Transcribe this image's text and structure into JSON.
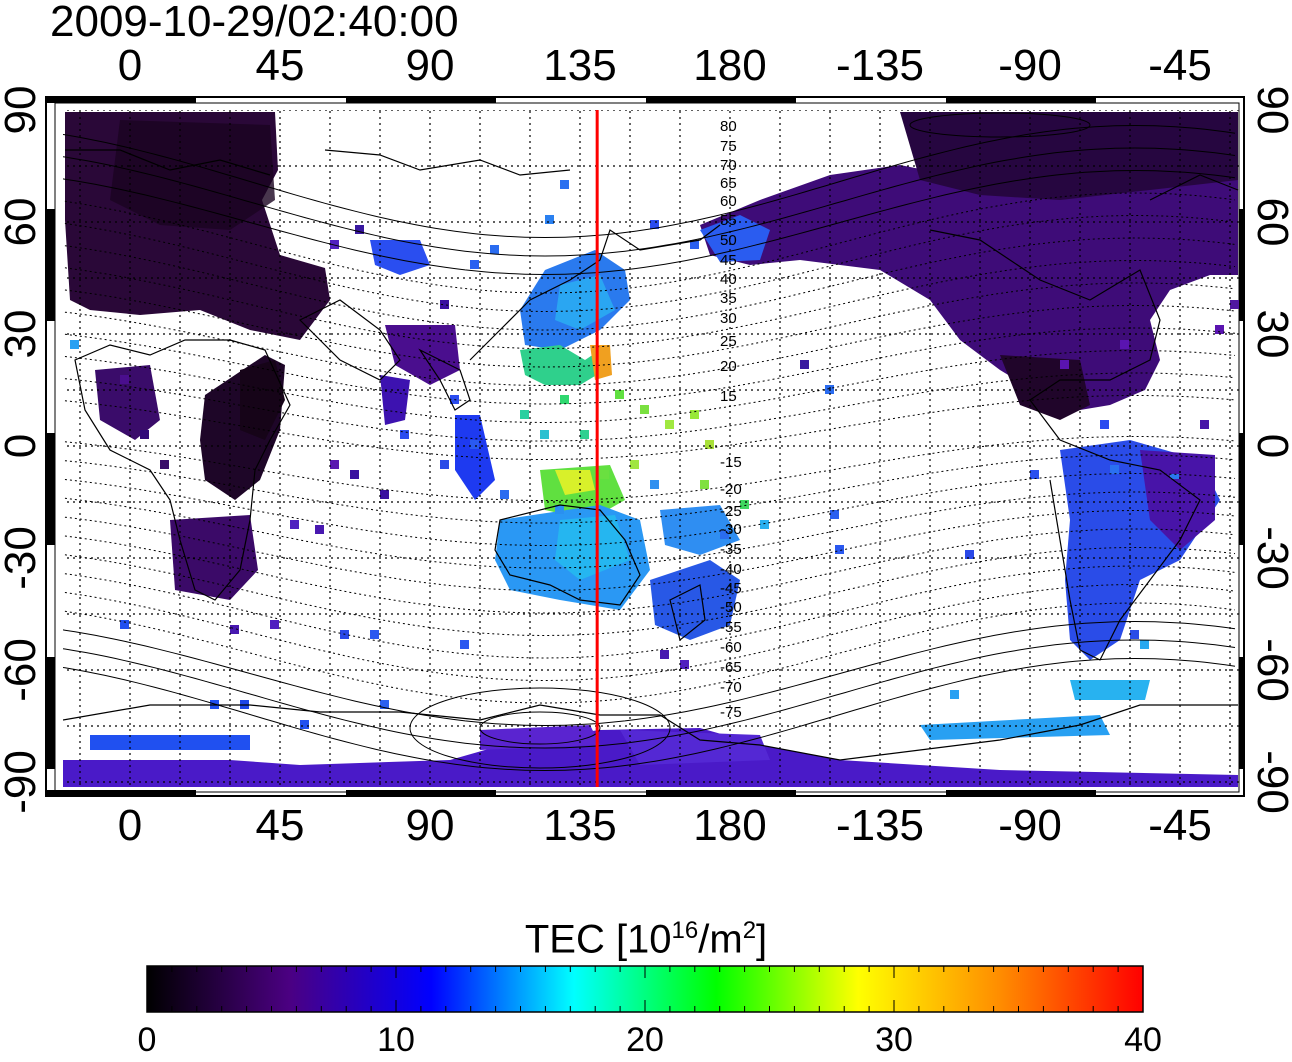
{
  "timestamp": "2009-10-29/02:40:00",
  "map": {
    "top_lon_ticks": [
      "0",
      "45",
      "90",
      "135",
      "180",
      "-135",
      "-90",
      "-45"
    ],
    "bottom_lon_ticks": [
      "0",
      "45",
      "90",
      "135",
      "180",
      "-135",
      "-90",
      "-45"
    ],
    "left_lat_ticks": [
      "90",
      "60",
      "30",
      "0",
      "-30",
      "-60",
      "-90"
    ],
    "right_lat_ticks": [
      "90",
      "60",
      "30",
      "0",
      "-30",
      "-60",
      "-90"
    ],
    "contour_labels": [
      "80",
      "75",
      "70",
      "65",
      "60",
      "55",
      "50",
      "45",
      "40",
      "35",
      "30",
      "25",
      "20",
      "15",
      "-15",
      "-20",
      "-25",
      "-30",
      "-35",
      "-40",
      "-45",
      "-50",
      "-55",
      "-60",
      "-65",
      "-70",
      "-75"
    ],
    "meridian_marker_lon": 140,
    "marker_color": "#ff0000"
  },
  "colorbar": {
    "title_prefix": "TEC  [10",
    "title_sup1": "16",
    "title_mid": "/m",
    "title_sup2": "2",
    "title_suffix": "]",
    "ticks": [
      "0",
      "10",
      "20",
      "30",
      "40"
    ],
    "range": [
      0,
      40
    ],
    "colors": [
      "#000000",
      "#4b0082",
      "#0000ff",
      "#00ffff",
      "#00ff00",
      "#ffff00",
      "#ff8c00",
      "#ff0000"
    ]
  }
}
